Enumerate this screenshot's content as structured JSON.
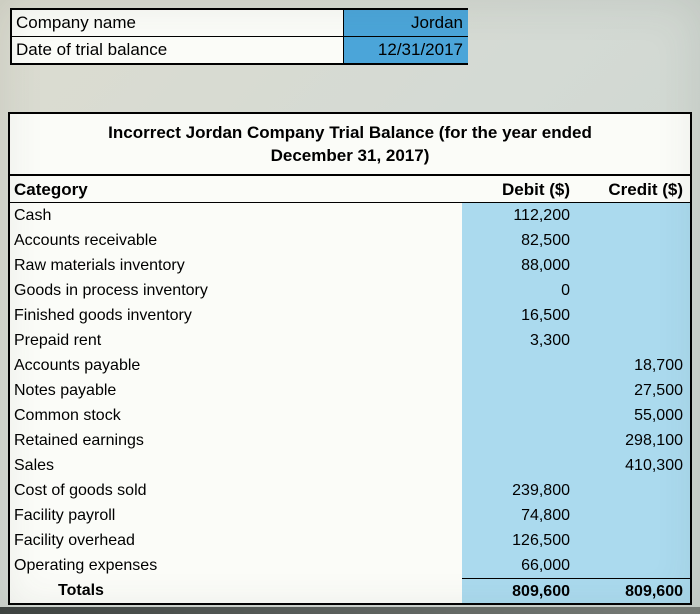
{
  "colors": {
    "page-bg": "#d4dad2",
    "table-bg": "#fbfcf8",
    "info-value-bg": "#4ba5d9",
    "data-area-bg": "#abdaee",
    "border": "#000000"
  },
  "info_table": {
    "rows": [
      {
        "label": "Company name",
        "value": "Jordan"
      },
      {
        "label": "Date of trial balance",
        "value": "12/31/2017"
      }
    ]
  },
  "trial_balance": {
    "title_line1": "Incorrect Jordan Company Trial Balance (for the year ended",
    "title_line2": "December 31, 2017)",
    "columns": [
      "Category",
      "Debit ($)",
      "Credit ($)"
    ],
    "rows": [
      {
        "category": "Cash",
        "debit": "112,200",
        "credit": ""
      },
      {
        "category": "Accounts receivable",
        "debit": "82,500",
        "credit": ""
      },
      {
        "category": "Raw materials inventory",
        "debit": "88,000",
        "credit": ""
      },
      {
        "category": "Goods in process inventory",
        "debit": "0",
        "credit": ""
      },
      {
        "category": "Finished goods inventory",
        "debit": "16,500",
        "credit": ""
      },
      {
        "category": "Prepaid rent",
        "debit": "3,300",
        "credit": ""
      },
      {
        "category": "Accounts payable",
        "debit": "",
        "credit": "18,700"
      },
      {
        "category": "Notes payable",
        "debit": "",
        "credit": "27,500"
      },
      {
        "category": "Common stock",
        "debit": "",
        "credit": "55,000"
      },
      {
        "category": "Retained earnings",
        "debit": "",
        "credit": "298,100"
      },
      {
        "category": "Sales",
        "debit": "",
        "credit": "410,300"
      },
      {
        "category": "Cost of goods sold",
        "debit": "239,800",
        "credit": ""
      },
      {
        "category": "Facility payroll",
        "debit": "74,800",
        "credit": ""
      },
      {
        "category": "Facility overhead",
        "debit": "126,500",
        "credit": ""
      },
      {
        "category": "Operating expenses",
        "debit": "66,000",
        "credit": ""
      }
    ],
    "totals": {
      "label": "Totals",
      "debit": "809,600",
      "credit": "809,600"
    }
  }
}
